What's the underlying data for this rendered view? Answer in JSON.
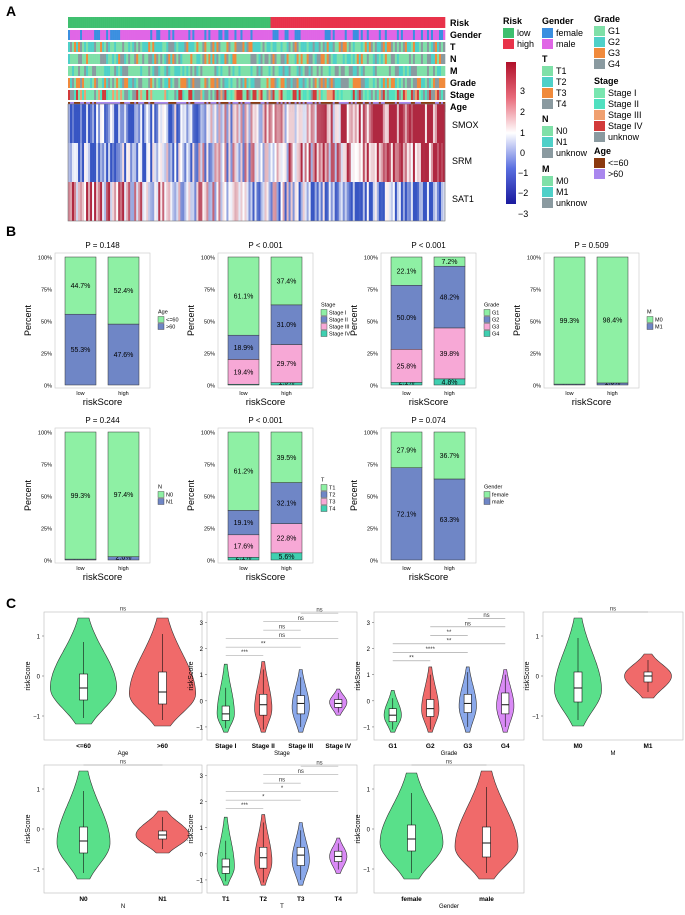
{
  "colors": {
    "low": "#3fbf6f",
    "high": "#e8334a",
    "green": "#8ef0a4",
    "blue": "#6f86c6",
    "pink": "#f7a8d6",
    "teal": "#3fcfb0",
    "v_green": "#59e08a",
    "v_red": "#f06a6a",
    "v_blue": "#8aa8ea",
    "v_purple": "#d98af5",
    "gender_female": "#3b8fe0",
    "gender_male": "#e066e6",
    "g1": "#7fe0a8",
    "g2": "#4fd0c8",
    "g3": "#f08a3c",
    "g4": "#8a9aa0",
    "st1": "#79e6b0",
    "st2": "#50e0c0",
    "st3": "#f0a070",
    "st4": "#d23a3a",
    "unknow": "#8a9aa0",
    "age_young": "#8b3a10",
    "age_old": "#a987ee"
  },
  "panels": {
    "A": {
      "label": "A",
      "row_labels": [
        "Risk",
        "Gender",
        "T",
        "N",
        "M",
        "Grade",
        "Stage",
        "Age"
      ],
      "genes": [
        "SMOX",
        "SRM",
        "SAT1"
      ],
      "colorbar_ticks": [
        "3",
        "2",
        "1",
        "0",
        "−1",
        "−2",
        "−3"
      ],
      "legend": {
        "risk": {
          "title": "Risk",
          "items": [
            "low",
            "high"
          ]
        },
        "gender": {
          "title": "Gender",
          "items": [
            "female",
            "male"
          ]
        },
        "grade": {
          "title": "Grade",
          "items": [
            "G1",
            "G2",
            "G3",
            "G4"
          ]
        },
        "t": {
          "title": "T",
          "items": [
            "T1",
            "T2",
            "T3",
            "T4"
          ]
        },
        "stage": {
          "title": "Stage",
          "items": [
            "Stage I",
            "Stage II",
            "Stage III",
            "Stage IV",
            "unknow"
          ]
        },
        "n": {
          "title": "N",
          "items": [
            "N0",
            "N1",
            "unknow"
          ]
        },
        "age": {
          "title": "Age",
          "items": [
            "<=60",
            ">60"
          ]
        },
        "m": {
          "title": "M",
          "items": [
            "M0",
            "M1",
            "unknow"
          ]
        }
      }
    },
    "B": {
      "label": "B",
      "ylabel": "Percent",
      "xlabel": "riskScore",
      "yticks": [
        "0%",
        "25%",
        "50%",
        "75%",
        "100%"
      ],
      "groups": [
        "low",
        "high"
      ]
    },
    "C": {
      "label": "C",
      "ylabel": "riskScore"
    }
  },
  "chart_data": [
    {
      "type": "bar",
      "panel": "B",
      "variant": "stacked-percent",
      "title": "P = 0.148",
      "legend_title": "Age",
      "categories": [
        "low",
        "high"
      ],
      "series": [
        {
          "name": ">60",
          "values": [
            55.3,
            47.6
          ],
          "labels": [
            "55.3%",
            "47.6%"
          ],
          "color": "blue"
        },
        {
          "name": "<=60",
          "values": [
            44.7,
            52.4
          ],
          "labels": [
            "44.7%",
            "52.4%"
          ],
          "color": "green"
        }
      ]
    },
    {
      "type": "bar",
      "panel": "B",
      "variant": "stacked-percent",
      "title": "P < 0.001",
      "legend_title": "Stage",
      "categories": [
        "low",
        "high"
      ],
      "series": [
        {
          "name": "Stage IV",
          "values": [
            0.6,
            1.9
          ],
          "labels": [
            "0.6%",
            "1.9%"
          ],
          "color": "teal"
        },
        {
          "name": "Stage III",
          "values": [
            19.4,
            29.7
          ],
          "labels": [
            "19.4%",
            "29.7%"
          ],
          "color": "pink"
        },
        {
          "name": "Stage II",
          "values": [
            18.9,
            31.0
          ],
          "labels": [
            "18.9%",
            "31.0%"
          ],
          "color": "blue"
        },
        {
          "name": "Stage I",
          "values": [
            61.1,
            37.4
          ],
          "labels": [
            "61.1%",
            "37.4%"
          ],
          "color": "green"
        }
      ]
    },
    {
      "type": "bar",
      "panel": "B",
      "variant": "stacked-percent",
      "title": "P < 0.001",
      "legend_title": "Grade",
      "categories": [
        "low",
        "high"
      ],
      "series": [
        {
          "name": "G4",
          "values": [
            2.1,
            4.8
          ],
          "labels": [
            "2.1%",
            "4.8%"
          ],
          "color": "teal"
        },
        {
          "name": "G3",
          "values": [
            25.8,
            39.8
          ],
          "labels": [
            "25.8%",
            "39.8%"
          ],
          "color": "pink"
        },
        {
          "name": "G2",
          "values": [
            50.0,
            48.2
          ],
          "labels": [
            "50.0%",
            "48.2%"
          ],
          "color": "blue"
        },
        {
          "name": "G1",
          "values": [
            22.1,
            7.2
          ],
          "labels": [
            "22.1%",
            "7.2%"
          ],
          "color": "green"
        }
      ]
    },
    {
      "type": "bar",
      "panel": "B",
      "variant": "stacked-percent",
      "title": "P = 0.509",
      "legend_title": "M",
      "categories": [
        "low",
        "high"
      ],
      "series": [
        {
          "name": "M1",
          "values": [
            0.7,
            1.6
          ],
          "labels": [
            "0.7%",
            "1.6%"
          ],
          "color": "blue"
        },
        {
          "name": "M0",
          "values": [
            99.3,
            98.4
          ],
          "labels": [
            "99.3%",
            "98.4%"
          ],
          "color": "green"
        }
      ]
    },
    {
      "type": "bar",
      "panel": "B",
      "variant": "stacked-percent",
      "title": "P = 0.244",
      "legend_title": "N",
      "categories": [
        "low",
        "high"
      ],
      "series": [
        {
          "name": "N1",
          "values": [
            0.7,
            2.6
          ],
          "labels": [
            "0.7%",
            "2.6%"
          ],
          "color": "blue"
        },
        {
          "name": "N0",
          "values": [
            99.3,
            97.4
          ],
          "labels": [
            "99.3%",
            "97.4%"
          ],
          "color": "green"
        }
      ]
    },
    {
      "type": "bar",
      "panel": "B",
      "variant": "stacked-percent",
      "title": "P < 0.001",
      "legend_title": "T",
      "categories": [
        "low",
        "high"
      ],
      "series": [
        {
          "name": "T4",
          "values": [
            2.1,
            5.6
          ],
          "labels": [
            "2.1%",
            "5.6%"
          ],
          "color": "teal"
        },
        {
          "name": "T3",
          "values": [
            17.6,
            22.8
          ],
          "labels": [
            "17.6%",
            "22.8%"
          ],
          "color": "pink"
        },
        {
          "name": "T2",
          "values": [
            19.1,
            32.1
          ],
          "labels": [
            "19.1%",
            "32.1%"
          ],
          "color": "blue"
        },
        {
          "name": "T1",
          "values": [
            61.2,
            39.5
          ],
          "labels": [
            "61.2%",
            "39.5%"
          ],
          "color": "green"
        }
      ]
    },
    {
      "type": "bar",
      "panel": "B",
      "variant": "stacked-percent",
      "title": "P = 0.074",
      "legend_title": "Gender",
      "categories": [
        "low",
        "high"
      ],
      "series": [
        {
          "name": "male",
          "values": [
            72.1,
            63.3
          ],
          "labels": [
            "72.1%",
            "63.3%"
          ],
          "color": "blue"
        },
        {
          "name": "female",
          "values": [
            27.9,
            36.7
          ],
          "labels": [
            "27.9%",
            "36.7%"
          ],
          "color": "green"
        }
      ]
    },
    {
      "type": "violin",
      "panel": "C",
      "xlabel": "Age",
      "ylim": [
        -1.6,
        1.6
      ],
      "yticks": [
        -1,
        0,
        1
      ],
      "groups": [
        {
          "name": "<=60",
          "color": "v_green",
          "median": -0.3,
          "q1": -0.6,
          "q3": 0.05,
          "wlo": -1.05,
          "whi": 0.85,
          "min": -1.2,
          "max": 1.45,
          "mode": -0.3,
          "width": 1.0
        },
        {
          "name": ">60",
          "color": "v_red",
          "median": -0.4,
          "q1": -0.7,
          "q3": 0.1,
          "wlo": -1.1,
          "whi": 1.05,
          "min": -1.25,
          "max": 1.45,
          "mode": -0.45,
          "width": 1.0
        }
      ],
      "comparisons": [
        {
          "a": 0,
          "b": 1,
          "text": "ns"
        }
      ]
    },
    {
      "type": "violin",
      "panel": "C",
      "xlabel": "Stage",
      "ylim": [
        -1.5,
        3.4
      ],
      "yticks": [
        -1,
        0,
        1,
        2,
        3
      ],
      "groups": [
        {
          "name": "Stage I",
          "color": "v_green",
          "median": -0.5,
          "q1": -0.75,
          "q3": -0.2,
          "wlo": -1.05,
          "whi": 0.5,
          "min": -1.2,
          "max": 1.4,
          "mode": -0.5,
          "width": 0.55
        },
        {
          "name": "Stage II",
          "color": "v_red",
          "median": -0.15,
          "q1": -0.55,
          "q3": 0.25,
          "wlo": -1.1,
          "whi": 1.2,
          "min": -1.2,
          "max": 1.5,
          "mode": -0.3,
          "width": 0.55
        },
        {
          "name": "Stage III",
          "color": "v_blue",
          "median": -0.1,
          "q1": -0.5,
          "q3": 0.2,
          "wlo": -1.0,
          "whi": 0.9,
          "min": -1.2,
          "max": 1.2,
          "mode": -0.25,
          "width": 0.55
        },
        {
          "name": "Stage IV",
          "color": "v_purple",
          "median": -0.1,
          "q1": -0.25,
          "q3": 0.05,
          "wlo": -0.45,
          "whi": 0.3,
          "min": -0.55,
          "max": 0.45,
          "mode": -0.05,
          "width": 0.55
        }
      ],
      "comparisons": [
        {
          "a": 0,
          "b": 1,
          "text": "***"
        },
        {
          "a": 0,
          "b": 2,
          "text": "**"
        },
        {
          "a": 0,
          "b": 3,
          "text": "ns"
        },
        {
          "a": 1,
          "b": 2,
          "text": "ns"
        },
        {
          "a": 1,
          "b": 3,
          "text": "ns"
        },
        {
          "a": 2,
          "b": 3,
          "text": "ns"
        }
      ]
    },
    {
      "type": "violin",
      "panel": "C",
      "xlabel": "Grade",
      "ylim": [
        -1.5,
        3.4
      ],
      "yticks": [
        -1,
        0,
        1,
        2,
        3
      ],
      "groups": [
        {
          "name": "G1",
          "color": "v_green",
          "median": -0.55,
          "q1": -0.8,
          "q3": -0.3,
          "wlo": -1.1,
          "whi": 0.1,
          "min": -1.2,
          "max": 0.4,
          "mode": -0.55,
          "width": 0.55
        },
        {
          "name": "G2",
          "color": "v_red",
          "median": -0.3,
          "q1": -0.6,
          "q3": 0.05,
          "wlo": -1.1,
          "whi": 1.0,
          "min": -1.2,
          "max": 1.3,
          "mode": -0.35,
          "width": 0.55
        },
        {
          "name": "G3",
          "color": "v_blue",
          "median": -0.1,
          "q1": -0.45,
          "q3": 0.25,
          "wlo": -1.0,
          "whi": 1.1,
          "min": -1.2,
          "max": 1.3,
          "mode": -0.2,
          "width": 0.55
        },
        {
          "name": "G4",
          "color": "v_purple",
          "median": -0.15,
          "q1": -0.5,
          "q3": 0.3,
          "wlo": -1.0,
          "whi": 1.0,
          "min": -1.2,
          "max": 1.2,
          "mode": -0.2,
          "width": 0.55
        }
      ],
      "comparisons": [
        {
          "a": 0,
          "b": 1,
          "text": "**"
        },
        {
          "a": 0,
          "b": 2,
          "text": "****"
        },
        {
          "a": 0,
          "b": 3,
          "text": "**"
        },
        {
          "a": 1,
          "b": 2,
          "text": "**"
        },
        {
          "a": 1,
          "b": 3,
          "text": "ns"
        },
        {
          "a": 2,
          "b": 3,
          "text": "ns"
        }
      ]
    },
    {
      "type": "violin",
      "panel": "C",
      "xlabel": "M",
      "ylim": [
        -1.6,
        1.6
      ],
      "yticks": [
        -1,
        0,
        1
      ],
      "groups": [
        {
          "name": "M0",
          "color": "v_green",
          "median": -0.3,
          "q1": -0.65,
          "q3": 0.1,
          "wlo": -1.1,
          "whi": 0.95,
          "min": -1.25,
          "max": 1.45,
          "mode": -0.35,
          "width": 0.8
        },
        {
          "name": "M1",
          "color": "v_red",
          "median": 0.0,
          "q1": -0.15,
          "q3": 0.1,
          "wlo": -0.4,
          "whi": 0.4,
          "min": -0.55,
          "max": 0.55,
          "mode": 0.0,
          "width": 0.8
        }
      ],
      "comparisons": [
        {
          "a": 0,
          "b": 1,
          "text": "ns"
        }
      ]
    },
    {
      "type": "violin",
      "panel": "C",
      "xlabel": "N",
      "ylim": [
        -1.6,
        1.6
      ],
      "yticks": [
        -1,
        0,
        1
      ],
      "groups": [
        {
          "name": "N0",
          "color": "v_green",
          "median": -0.3,
          "q1": -0.6,
          "q3": 0.05,
          "wlo": -1.1,
          "whi": 0.95,
          "min": -1.25,
          "max": 1.45,
          "mode": -0.35,
          "width": 0.8
        },
        {
          "name": "N1",
          "color": "v_red",
          "median": -0.15,
          "q1": -0.25,
          "q3": -0.05,
          "wlo": -0.5,
          "whi": 0.3,
          "min": -0.6,
          "max": 0.45,
          "mode": -0.15,
          "width": 0.8
        }
      ],
      "comparisons": [
        {
          "a": 0,
          "b": 1,
          "text": "ns"
        }
      ]
    },
    {
      "type": "violin",
      "panel": "C",
      "xlabel": "T",
      "ylim": [
        -1.5,
        3.4
      ],
      "yticks": [
        -1,
        0,
        1,
        2,
        3
      ],
      "groups": [
        {
          "name": "T1",
          "color": "v_green",
          "median": -0.5,
          "q1": -0.75,
          "q3": -0.2,
          "wlo": -1.05,
          "whi": 0.5,
          "min": -1.2,
          "max": 1.4,
          "mode": -0.5,
          "width": 0.55
        },
        {
          "name": "T2",
          "color": "v_red",
          "median": -0.15,
          "q1": -0.55,
          "q3": 0.25,
          "wlo": -1.1,
          "whi": 1.2,
          "min": -1.2,
          "max": 1.5,
          "mode": -0.3,
          "width": 0.55
        },
        {
          "name": "T3",
          "color": "v_blue",
          "median": -0.05,
          "q1": -0.45,
          "q3": 0.25,
          "wlo": -1.0,
          "whi": 0.9,
          "min": -1.2,
          "max": 1.2,
          "mode": -0.25,
          "width": 0.55
        },
        {
          "name": "T4",
          "color": "v_purple",
          "median": -0.1,
          "q1": -0.3,
          "q3": 0.1,
          "wlo": -0.6,
          "whi": 0.4,
          "min": -0.75,
          "max": 0.6,
          "mode": -0.1,
          "width": 0.55
        }
      ],
      "comparisons": [
        {
          "a": 0,
          "b": 1,
          "text": "***"
        },
        {
          "a": 0,
          "b": 2,
          "text": "*"
        },
        {
          "a": 0,
          "b": 3,
          "text": "*"
        },
        {
          "a": 1,
          "b": 2,
          "text": "ns"
        },
        {
          "a": 1,
          "b": 3,
          "text": "ns"
        },
        {
          "a": 2,
          "b": 3,
          "text": "ns"
        }
      ]
    },
    {
      "type": "violin",
      "panel": "C",
      "xlabel": "Gender",
      "ylim": [
        -1.6,
        1.6
      ],
      "yticks": [
        -1,
        0,
        1
      ],
      "groups": [
        {
          "name": "female",
          "color": "v_green",
          "median": -0.25,
          "q1": -0.55,
          "q3": 0.1,
          "wlo": -1.1,
          "whi": 0.9,
          "min": -1.25,
          "max": 1.4,
          "mode": -0.35,
          "width": 1.0
        },
        {
          "name": "male",
          "color": "v_red",
          "median": -0.35,
          "q1": -0.7,
          "q3": 0.05,
          "wlo": -1.1,
          "whi": 1.05,
          "min": -1.25,
          "max": 1.45,
          "mode": -0.45,
          "width": 1.0
        }
      ],
      "comparisons": [
        {
          "a": 0,
          "b": 1,
          "text": "ns"
        }
      ]
    }
  ]
}
